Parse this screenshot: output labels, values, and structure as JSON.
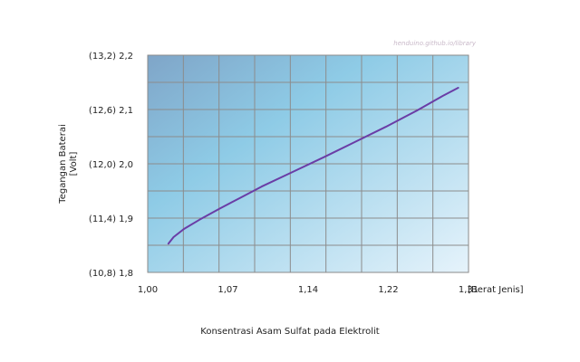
{
  "watermark": "henduino.github.io/library",
  "chart_data": {
    "type": "line",
    "title": "",
    "xlabel": "Konsentrasi Asam Sulfat pada Elektrolit",
    "x_unit": "[Berat Jenis]",
    "ylabel": [
      "Tegangan Baterai",
      "[Volt]"
    ],
    "xlim": [
      1.0,
      1.31
    ],
    "ylim": [
      1.8,
      2.2
    ],
    "x_ticks": [
      "1,00",
      "1,07",
      "1,14",
      "1,22",
      "1,31"
    ],
    "x_tick_values": [
      1.0,
      1.07,
      1.14,
      1.22,
      1.31
    ],
    "y_ticks": [
      "2,2",
      "2,1",
      "2,0",
      "1,9",
      "1,8"
    ],
    "y_tick_values": [
      2.2,
      2.1,
      2.0,
      1.9,
      1.8
    ],
    "y_ticks_secondary": [
      "(13,2)",
      "(12,6)",
      "(12,0)",
      "(11,4)",
      "(10,8)"
    ],
    "grid": true,
    "line_color": "#6a3da6",
    "series": [
      {
        "x": [
          1.02,
          1.025,
          1.035,
          1.05,
          1.07,
          1.09,
          1.11,
          1.14,
          1.17,
          1.2,
          1.23,
          1.26,
          1.285,
          1.3
        ],
        "y": [
          1.853,
          1.865,
          1.88,
          1.897,
          1.918,
          1.938,
          1.958,
          1.985,
          2.012,
          2.04,
          2.068,
          2.098,
          2.125,
          2.14
        ]
      }
    ]
  }
}
